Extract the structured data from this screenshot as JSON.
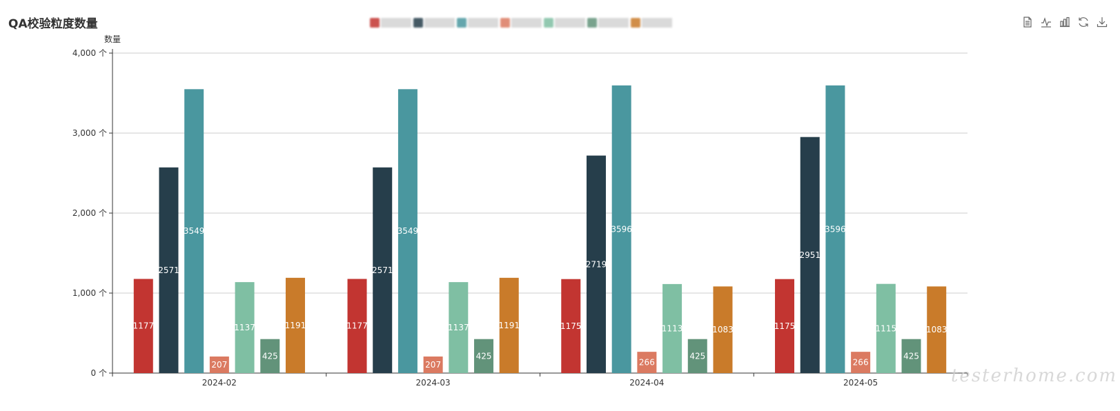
{
  "chart_data": {
    "type": "bar",
    "title": "QA校验粒度数量",
    "ylabel": "数量",
    "xlabel": "",
    "ylim": [
      0,
      4000
    ],
    "yticks": [
      "0 个",
      "1,000 个",
      "2,000 个",
      "3,000 个",
      "4,000 个"
    ],
    "categories": [
      "2024-02",
      "2024-03",
      "2024-04",
      "2024-05"
    ],
    "grid": true,
    "legend_position": "top-center",
    "series": [
      {
        "color": "#c23531",
        "values": [
          1177,
          1177,
          1175,
          1175
        ]
      },
      {
        "color": "#263e4b",
        "values": [
          2571,
          2571,
          2719,
          2951
        ]
      },
      {
        "color": "#4a979f",
        "values": [
          3549,
          3549,
          3596,
          3596
        ]
      },
      {
        "color": "#db7a61",
        "values": [
          207,
          207,
          266,
          266
        ]
      },
      {
        "color": "#7fbfa3",
        "values": [
          1137,
          1137,
          1113,
          1115
        ]
      },
      {
        "color": "#62937a",
        "values": [
          425,
          425,
          425,
          425
        ]
      },
      {
        "color": "#c97b2a",
        "values": [
          1191,
          1191,
          1083,
          1083
        ]
      }
    ],
    "data_label_position": "inside-center"
  },
  "toolbox": {
    "icons": [
      "data-view-icon",
      "line-chart-icon",
      "bar-chart-icon",
      "restore-icon",
      "download-icon"
    ],
    "icon_color": "#666666"
  },
  "watermark": {
    "text": "testerhome.com"
  }
}
